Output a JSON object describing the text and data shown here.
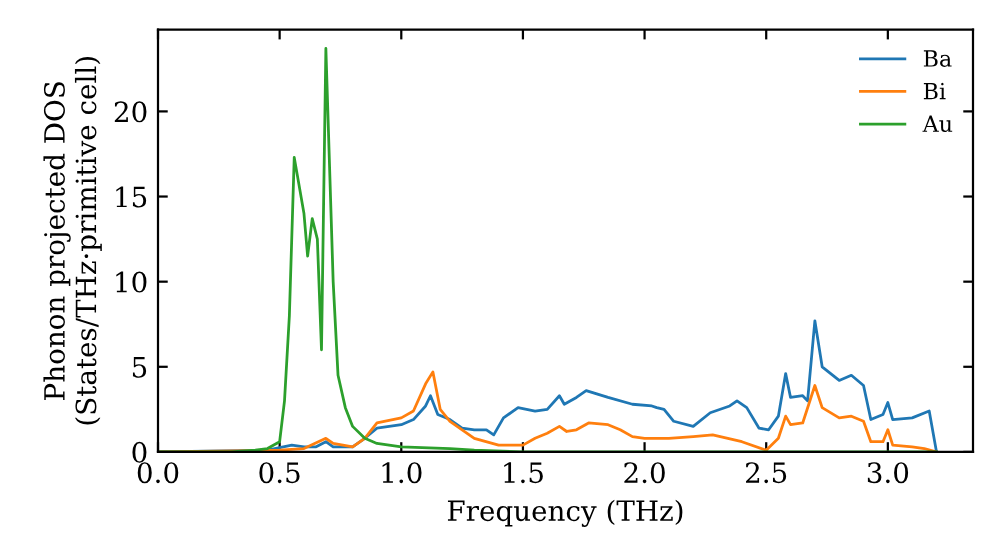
{
  "chart_data": {
    "type": "line",
    "xlabel": "Frequency (THz)",
    "ylabel": "Phonon projected DOS\n(States/THz·primitive cell)",
    "xlim": [
      0,
      3.35
    ],
    "ylim": [
      0,
      24.8
    ],
    "xticks": [
      {
        "value": 0,
        "label": "0.0"
      },
      {
        "value": 0.5,
        "label": "0.5"
      },
      {
        "value": 1,
        "label": "1.0"
      },
      {
        "value": 1.5,
        "label": "1.5"
      },
      {
        "value": 2,
        "label": "2.0"
      },
      {
        "value": 2.5,
        "label": "2.5"
      },
      {
        "value": 3,
        "label": "3.0"
      }
    ],
    "yticks": [
      0,
      5,
      10,
      15,
      20
    ],
    "grid": false,
    "legend": "top right",
    "marker": "none",
    "line_style": "solid",
    "series": [
      {
        "name": "Ba",
        "color": "#1f77b4",
        "x": [
          0,
          0.45,
          0.55,
          0.6,
          0.65,
          0.69,
          0.72,
          0.8,
          0.85,
          0.9,
          1.0,
          1.05,
          1.1,
          1.12,
          1.15,
          1.2,
          1.25,
          1.3,
          1.35,
          1.38,
          1.42,
          1.48,
          1.55,
          1.6,
          1.65,
          1.67,
          1.72,
          1.76,
          1.85,
          1.95,
          2.03,
          2.05,
          2.08,
          2.12,
          2.2,
          2.27,
          2.35,
          2.38,
          2.42,
          2.47,
          2.51,
          2.55,
          2.58,
          2.6,
          2.65,
          2.67,
          2.7,
          2.73,
          2.8,
          2.85,
          2.9,
          2.93,
          2.98,
          3.0,
          3.02,
          3.1,
          3.17,
          3.2
        ],
        "values": [
          0,
          0.1,
          0.4,
          0.3,
          0.3,
          0.6,
          0.3,
          0.3,
          0.8,
          1.4,
          1.6,
          1.9,
          2.7,
          3.3,
          2.2,
          1.9,
          1.4,
          1.3,
          1.3,
          1.0,
          2.0,
          2.6,
          2.4,
          2.5,
          3.3,
          2.8,
          3.2,
          3.6,
          3.2,
          2.8,
          2.7,
          2.6,
          2.5,
          1.8,
          1.5,
          2.3,
          2.7,
          3.0,
          2.6,
          1.4,
          1.3,
          2.1,
          4.6,
          3.2,
          3.3,
          3.0,
          7.7,
          5.0,
          4.2,
          4.5,
          3.9,
          1.9,
          2.2,
          2.9,
          1.9,
          2.0,
          2.4,
          0
        ]
      },
      {
        "name": "Bi",
        "color": "#ff7f0e",
        "x": [
          0,
          0.5,
          0.6,
          0.69,
          0.72,
          0.8,
          0.85,
          0.9,
          1.0,
          1.05,
          1.1,
          1.13,
          1.16,
          1.2,
          1.3,
          1.4,
          1.5,
          1.55,
          1.6,
          1.65,
          1.68,
          1.72,
          1.77,
          1.85,
          1.9,
          1.95,
          2.0,
          2.1,
          2.2,
          2.28,
          2.4,
          2.5,
          2.55,
          2.58,
          2.6,
          2.65,
          2.7,
          2.73,
          2.8,
          2.85,
          2.9,
          2.93,
          2.98,
          3.0,
          3.02,
          3.1,
          3.15,
          3.2
        ],
        "values": [
          0,
          0.1,
          0.2,
          0.8,
          0.5,
          0.3,
          0.8,
          1.7,
          2.0,
          2.4,
          4.0,
          4.7,
          2.5,
          1.8,
          0.8,
          0.4,
          0.4,
          0.8,
          1.1,
          1.5,
          1.2,
          1.3,
          1.7,
          1.6,
          1.3,
          0.9,
          0.8,
          0.8,
          0.9,
          1.0,
          0.6,
          0.1,
          0.8,
          2.1,
          1.6,
          1.7,
          3.9,
          2.6,
          2.0,
          2.1,
          1.8,
          0.6,
          0.6,
          1.3,
          0.4,
          0.3,
          0.2,
          0
        ]
      },
      {
        "name": "Au",
        "color": "#2ca02c",
        "x": [
          0,
          0.3,
          0.4,
          0.45,
          0.5,
          0.52,
          0.54,
          0.56,
          0.6,
          0.615,
          0.634,
          0.655,
          0.672,
          0.69,
          0.72,
          0.74,
          0.77,
          0.8,
          0.85,
          0.9,
          1.0,
          1.2,
          1.3,
          1.5,
          3.2
        ],
        "values": [
          0,
          0.0,
          0.1,
          0.2,
          0.6,
          3,
          8,
          17.3,
          14,
          11.5,
          13.7,
          12.5,
          6.0,
          23.7,
          10,
          4.5,
          2.6,
          1.5,
          0.8,
          0.5,
          0.3,
          0.2,
          0.1,
          0,
          0
        ]
      }
    ]
  }
}
